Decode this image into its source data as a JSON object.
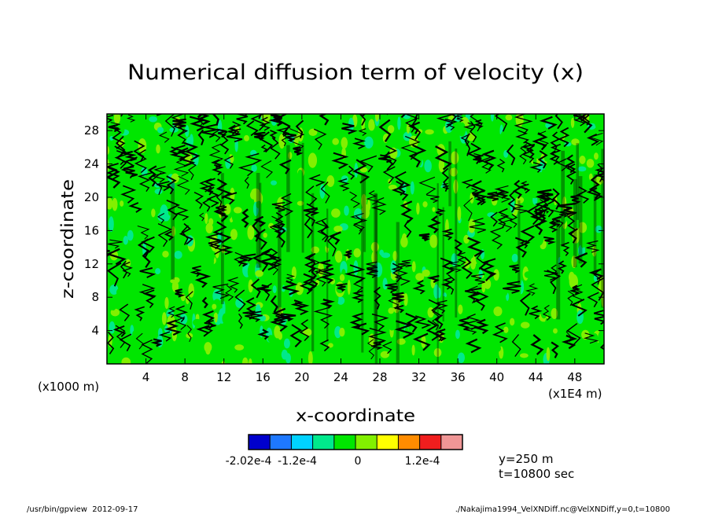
{
  "chart_data": {
    "type": "heatmap",
    "title": "Numerical diffusion term of velocity (x)",
    "xlabel": "x-coordinate",
    "ylabel": "z-coordinate",
    "x_unit_note": "(x1E4 m)",
    "y_unit_note": "(x1000 m)",
    "x_ticks": [
      4,
      8,
      12,
      16,
      20,
      24,
      28,
      32,
      36,
      40,
      44,
      48
    ],
    "y_ticks": [
      4,
      8,
      12,
      16,
      20,
      24,
      28
    ],
    "xlim": [
      0,
      51
    ],
    "ylim": [
      0,
      30
    ],
    "colorbar": {
      "colors": [
        "#0000cd",
        "#1e78ff",
        "#00d2ff",
        "#00e98c",
        "#00e600",
        "#82f000",
        "#ffff00",
        "#ff8c00",
        "#f01e1e",
        "#f09696"
      ],
      "labels": [
        "-2.02e-4",
        "-1.2e-4",
        "0",
        "1.2e-4"
      ]
    },
    "annotations": [
      "y=250 m",
      "t=10800 sec"
    ],
    "footer_left": "/usr/bin/gpview  2012-09-17",
    "footer_right": "./Nakajima1994_VelXNDiff.nc@VelXNDiff,y=0,t=10800"
  }
}
